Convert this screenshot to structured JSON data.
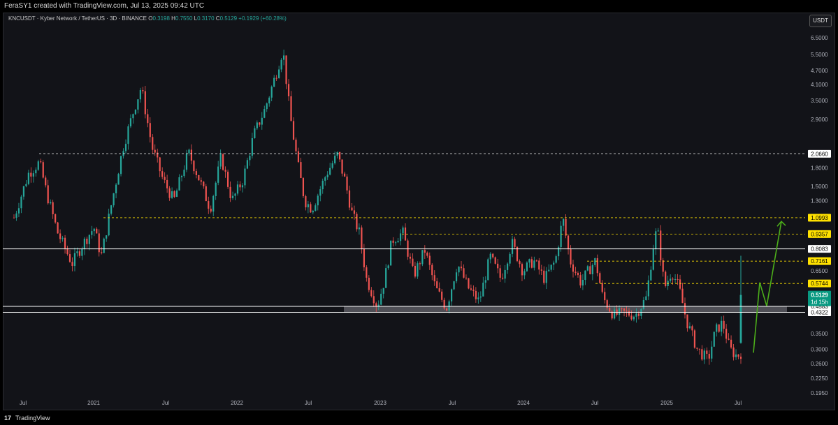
{
  "header": {
    "text": "FeraSY1 created with TradingView.com, Jul 13, 2025 09:42 UTC"
  },
  "legend": {
    "symbol": "KNCUSDT · Kyber Network / TetherUS · 3D · BINANCE",
    "o_label": "O",
    "o_value": "0.3198",
    "h_label": "H",
    "h_value": "0.7550",
    "l_label": "L",
    "l_value": "0.3170",
    "c_label": "C",
    "c_value": "0.5129",
    "change": "+0.1929 (+60.28%)"
  },
  "currency_button": "USDT",
  "footer": {
    "logo": "17",
    "brand": "TradingView"
  },
  "colors": {
    "up": "#26a69a",
    "down": "#ef5350",
    "projection": "#4caf1a",
    "level_yellow": "#ffe100",
    "white": "#ffffff"
  },
  "chart_data": {
    "type": "candlestick",
    "symbol": "KNCUSDT",
    "exchange": "BINANCE",
    "interval": "3D",
    "y_scale": "log",
    "ylim": [
      0.18,
      7.0
    ],
    "y_ticks": [
      "6.5000",
      "5.5000",
      "4.7000",
      "4.1000",
      "3.5000",
      "2.9000",
      "2.0660",
      "1.8000",
      "1.5000",
      "1.3000",
      "1.0993",
      "0.9357",
      "0.8083",
      "0.7161",
      "0.6500",
      "0.5744",
      "0.5129",
      "0.4583",
      "0.4322",
      "0.3500",
      "0.3000",
      "0.2600",
      "0.2250",
      "0.1950"
    ],
    "x_ticks": [
      "Jul",
      "2021",
      "Jul",
      "2022",
      "Jul",
      "2023",
      "Jul",
      "2024",
      "Jul",
      "2025",
      "Jul"
    ],
    "levels": [
      {
        "value": "2.0660",
        "style": "dashed",
        "color": "white"
      },
      {
        "value": "1.0993",
        "style": "dashed",
        "color": "yellow"
      },
      {
        "value": "0.9357",
        "style": "dashed",
        "color": "yellow"
      },
      {
        "value": "0.8083",
        "style": "solid",
        "color": "white"
      },
      {
        "value": "0.7161",
        "style": "dashed",
        "color": "yellow"
      },
      {
        "value": "0.5744",
        "style": "dashed",
        "color": "yellow"
      },
      {
        "value": "0.4583",
        "style": "solid",
        "color": "white"
      },
      {
        "value": "0.4322",
        "style": "solid",
        "color": "white"
      }
    ],
    "current_price": {
      "value": "0.5129",
      "countdown": "1d 15h"
    },
    "support_zone": {
      "low": 0.4322,
      "high": 0.4583
    },
    "price_path": [
      [
        0.0,
        1.1
      ],
      [
        0.02,
        1.7
      ],
      [
        0.035,
        1.9
      ],
      [
        0.045,
        1.4
      ],
      [
        0.06,
        0.95
      ],
      [
        0.08,
        0.7
      ],
      [
        0.095,
        0.85
      ],
      [
        0.11,
        1.0
      ],
      [
        0.12,
        0.75
      ],
      [
        0.135,
        1.3
      ],
      [
        0.15,
        2.2
      ],
      [
        0.165,
        3.2
      ],
      [
        0.175,
        4.0
      ],
      [
        0.19,
        2.2
      ],
      [
        0.205,
        1.6
      ],
      [
        0.22,
        1.3
      ],
      [
        0.24,
        2.1
      ],
      [
        0.255,
        1.6
      ],
      [
        0.27,
        1.2
      ],
      [
        0.285,
        2.0
      ],
      [
        0.3,
        1.3
      ],
      [
        0.315,
        1.6
      ],
      [
        0.33,
        2.5
      ],
      [
        0.345,
        3.2
      ],
      [
        0.36,
        4.5
      ],
      [
        0.37,
        5.8
      ],
      [
        0.38,
        3.0
      ],
      [
        0.39,
        1.9
      ],
      [
        0.4,
        1.3
      ],
      [
        0.41,
        1.2
      ],
      [
        0.43,
        1.7
      ],
      [
        0.445,
        2.05
      ],
      [
        0.455,
        1.6
      ],
      [
        0.465,
        1.15
      ],
      [
        0.475,
        0.95
      ],
      [
        0.485,
        0.6
      ],
      [
        0.5,
        0.46
      ],
      [
        0.51,
        0.6
      ],
      [
        0.52,
        0.88
      ],
      [
        0.535,
        0.95
      ],
      [
        0.55,
        0.62
      ],
      [
        0.565,
        0.8
      ],
      [
        0.58,
        0.55
      ],
      [
        0.595,
        0.45
      ],
      [
        0.61,
        0.7
      ],
      [
        0.625,
        0.55
      ],
      [
        0.64,
        0.48
      ],
      [
        0.655,
        0.75
      ],
      [
        0.67,
        0.6
      ],
      [
        0.685,
        0.86
      ],
      [
        0.7,
        0.65
      ],
      [
        0.715,
        0.72
      ],
      [
        0.73,
        0.6
      ],
      [
        0.745,
        0.72
      ],
      [
        0.755,
        1.1
      ],
      [
        0.765,
        0.72
      ],
      [
        0.78,
        0.58
      ],
      [
        0.79,
        0.65
      ],
      [
        0.8,
        0.72
      ],
      [
        0.81,
        0.5
      ],
      [
        0.825,
        0.42
      ],
      [
        0.84,
        0.43
      ],
      [
        0.855,
        0.42
      ],
      [
        0.87,
        0.5
      ],
      [
        0.88,
        0.85
      ],
      [
        0.885,
        1.0
      ],
      [
        0.895,
        0.55
      ],
      [
        0.905,
        0.65
      ],
      [
        0.915,
        0.55
      ],
      [
        0.925,
        0.4
      ],
      [
        0.94,
        0.3
      ],
      [
        0.955,
        0.27
      ],
      [
        0.965,
        0.36
      ],
      [
        0.975,
        0.39
      ],
      [
        0.985,
        0.3
      ],
      [
        0.995,
        0.28
      ],
      [
        1.0,
        0.29
      ]
    ],
    "projection_path": [
      [
        0.512,
        0.29
      ],
      [
        0.521,
        0.58
      ],
      [
        0.531,
        0.46
      ],
      [
        0.552,
        1.06
      ]
    ]
  }
}
